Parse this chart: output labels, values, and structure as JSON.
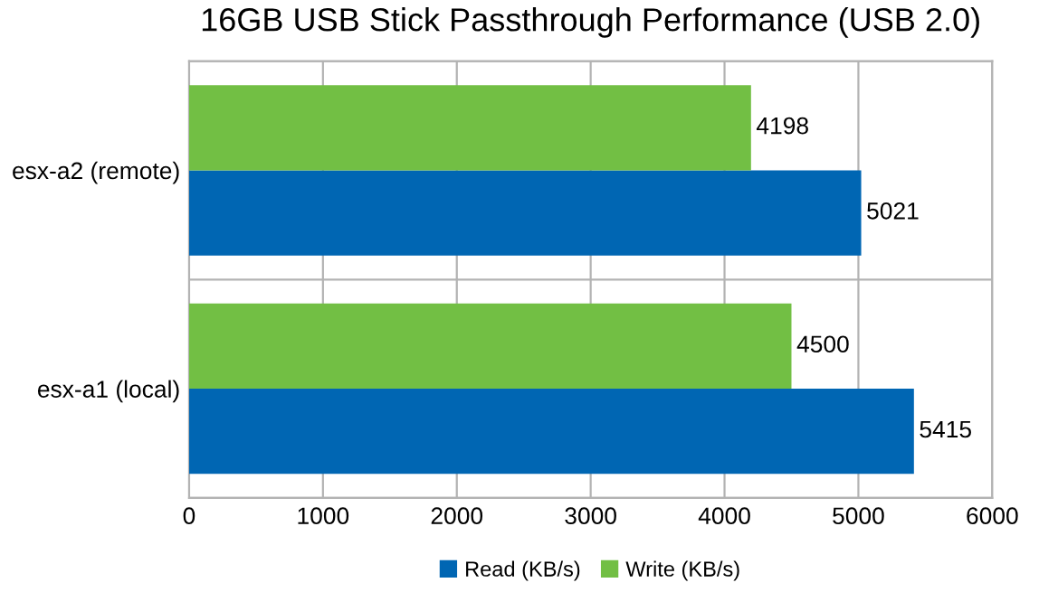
{
  "chart_data": {
    "type": "bar",
    "orientation": "horizontal",
    "title": "16GB USB Stick Passthrough Performance (USB 2.0)",
    "categories": [
      "esx-a2 (remote)",
      "esx-a1 (local)"
    ],
    "series": [
      {
        "name": "Read (KB/s)",
        "color": "#0066b3",
        "values": [
          5021,
          5415
        ]
      },
      {
        "name": "Write (KB/s)",
        "color": "#72bf44",
        "values": [
          4198,
          4500
        ]
      }
    ],
    "xlim": [
      0,
      6000
    ],
    "xticks": [
      0,
      1000,
      2000,
      3000,
      4000,
      5000,
      6000
    ],
    "grid": true,
    "legend": "bottom",
    "data_labels": true
  }
}
